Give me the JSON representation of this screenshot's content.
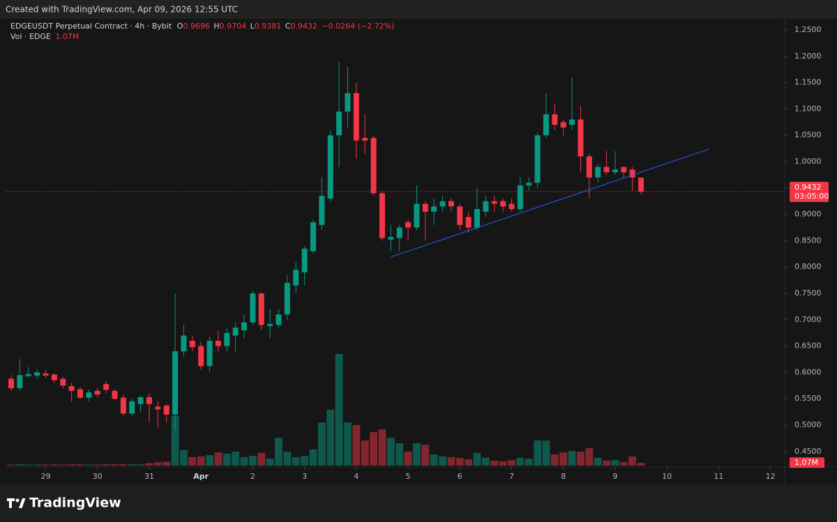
{
  "chart_data": {
    "type": "candlestick",
    "created": "Created with TradingView.com, Apr 09, 2026 12:55 UTC",
    "title": "EDGEUSDT Perpetual Contract · 4h · Bybit",
    "ohlc_prefixes": [
      "O",
      "H",
      "L",
      "C"
    ],
    "change": "−0.0264 (−2.72%)",
    "countdown": "03:05:00",
    "brand": "TradingView",
    "up_color": "#089981",
    "down_color": "#f23645",
    "open": [
      0.588,
      0.57,
      0.593,
      0.594,
      0.598,
      0.596,
      0.588,
      0.574,
      0.568,
      0.552,
      0.565,
      0.578,
      0.565,
      0.552,
      0.522,
      0.54,
      0.553,
      0.535,
      0.537,
      0.52,
      0.64,
      0.66,
      0.65,
      0.612,
      0.66,
      0.65,
      0.67,
      0.68,
      0.695,
      0.75,
      0.688,
      0.69,
      0.71,
      0.765,
      0.79,
      0.83,
      0.88,
      0.93,
      1.05,
      1.095,
      1.13,
      1.045,
      1.045,
      0.94,
      0.852,
      0.855,
      0.885,
      0.875,
      0.92,
      0.905,
      0.915,
      0.925,
      0.915,
      0.895,
      0.875,
      0.905,
      0.925,
      0.925,
      0.92,
      0.91,
      0.955,
      0.96,
      1.05,
      1.09,
      1.075,
      1.07,
      1.08,
      1.01,
      0.97,
      0.99,
      0.98,
      0.99,
      0.985,
      0.9696
    ],
    "high": [
      0.595,
      0.625,
      0.61,
      0.606,
      0.605,
      0.598,
      0.592,
      0.58,
      0.572,
      0.568,
      0.57,
      0.583,
      0.568,
      0.558,
      0.55,
      0.556,
      0.56,
      0.545,
      0.54,
      0.75,
      0.69,
      0.67,
      0.658,
      0.668,
      0.68,
      0.685,
      0.695,
      0.71,
      0.755,
      0.752,
      0.72,
      0.72,
      0.785,
      0.81,
      0.84,
      0.89,
      0.97,
      1.06,
      1.19,
      1.18,
      1.15,
      1.09,
      1.05,
      0.945,
      0.88,
      0.88,
      0.89,
      0.955,
      0.925,
      0.93,
      0.935,
      0.93,
      0.92,
      0.905,
      0.95,
      0.935,
      0.935,
      0.93,
      0.93,
      0.97,
      0.97,
      1.055,
      1.13,
      1.11,
      1.08,
      1.16,
      1.105,
      1.015,
      0.995,
      1.02,
      1.02,
      0.99,
      0.99,
      0.9704
    ],
    "low": [
      0.565,
      0.565,
      0.59,
      0.588,
      0.59,
      0.58,
      0.57,
      0.545,
      0.55,
      0.545,
      0.552,
      0.56,
      0.548,
      0.518,
      0.518,
      0.525,
      0.505,
      0.495,
      0.505,
      0.49,
      0.63,
      0.64,
      0.605,
      0.602,
      0.64,
      0.64,
      0.64,
      0.665,
      0.69,
      0.68,
      0.665,
      0.685,
      0.7,
      0.75,
      0.765,
      0.825,
      0.87,
      0.925,
      0.99,
      1.065,
      1.005,
      1.015,
      0.935,
      0.85,
      0.83,
      0.83,
      0.85,
      0.87,
      0.85,
      0.88,
      0.905,
      0.905,
      0.87,
      0.865,
      0.87,
      0.895,
      0.905,
      0.905,
      0.905,
      0.905,
      0.945,
      0.95,
      1.045,
      1.06,
      1.05,
      1.06,
      0.98,
      0.93,
      0.96,
      0.975,
      0.975,
      0.97,
      0.945,
      0.9381
    ],
    "close": [
      0.57,
      0.595,
      0.597,
      0.6,
      0.594,
      0.585,
      0.575,
      0.565,
      0.552,
      0.562,
      0.558,
      0.567,
      0.55,
      0.522,
      0.545,
      0.553,
      0.54,
      0.53,
      0.52,
      0.64,
      0.67,
      0.648,
      0.612,
      0.66,
      0.65,
      0.675,
      0.685,
      0.695,
      0.75,
      0.69,
      0.692,
      0.71,
      0.77,
      0.795,
      0.835,
      0.885,
      0.935,
      1.05,
      1.095,
      1.13,
      1.04,
      1.04,
      0.94,
      0.855,
      0.857,
      0.875,
      0.875,
      0.92,
      0.905,
      0.915,
      0.925,
      0.915,
      0.88,
      0.875,
      0.91,
      0.925,
      0.92,
      0.915,
      0.91,
      0.955,
      0.96,
      1.05,
      1.09,
      1.07,
      1.065,
      1.08,
      1.01,
      0.97,
      0.99,
      0.98,
      0.985,
      0.98,
      0.97,
      0.9432
    ],
    "volume": {
      "name": "Vol · EDGE",
      "last_label": "1.07M",
      "values": [
        400000,
        500000,
        400000,
        400000,
        400000,
        500000,
        400000,
        500000,
        500000,
        400000,
        400000,
        500000,
        500000,
        600000,
        500000,
        500000,
        1000000,
        1300000,
        1500000,
        20000000,
        6200000,
        3400000,
        3700000,
        4200000,
        5300000,
        4800000,
        5600000,
        3400000,
        3900000,
        5100000,
        2800000,
        11200000,
        5600000,
        3400000,
        3900000,
        6500000,
        17400000,
        22500000,
        45000000,
        17400000,
        16300000,
        10100000,
        13500000,
        14600000,
        11200000,
        9000000,
        5600000,
        9000000,
        8400000,
        4500000,
        3700000,
        3400000,
        3100000,
        2500000,
        5100000,
        3100000,
        2000000,
        1700000,
        2200000,
        3100000,
        2800000,
        10100000,
        10100000,
        4500000,
        5300000,
        5900000,
        5600000,
        7000000,
        3100000,
        2000000,
        2200000,
        1400000,
        3700000,
        1070000
      ],
      "y2lim": [
        0,
        180000000
      ]
    },
    "trendline": {
      "points": [
        [
          44,
          0.819
        ],
        [
          80.9,
          1.024
        ]
      ],
      "color": "#2962ff"
    },
    "xlim": [
      -0.65,
      89.65
    ],
    "xticks": [
      {
        "value": 4,
        "label": "29"
      },
      {
        "value": 10,
        "label": "30"
      },
      {
        "value": 16,
        "label": "31"
      },
      {
        "value": 22,
        "label": "Apr"
      },
      {
        "value": 28,
        "label": "2"
      },
      {
        "value": 34,
        "label": "3"
      },
      {
        "value": 40,
        "label": "4"
      },
      {
        "value": 46,
        "label": "5"
      },
      {
        "value": 52,
        "label": "6"
      },
      {
        "value": 58,
        "label": "7"
      },
      {
        "value": 64,
        "label": "8"
      },
      {
        "value": 70,
        "label": "9"
      },
      {
        "value": 76,
        "label": "10"
      },
      {
        "value": 82,
        "label": "11"
      },
      {
        "value": 88,
        "label": "12"
      }
    ],
    "ylim": [
      0.4206,
      1.2698
    ],
    "yticks": [
      {
        "value": 0.45,
        "label": "0.4500"
      },
      {
        "value": 0.5,
        "label": "0.5000"
      },
      {
        "value": 0.55,
        "label": "0.5500"
      },
      {
        "value": 0.6,
        "label": "0.6000"
      },
      {
        "value": 0.65,
        "label": "0.6500"
      },
      {
        "value": 0.7,
        "label": "0.7000"
      },
      {
        "value": 0.75,
        "label": "0.7500"
      },
      {
        "value": 0.8,
        "label": "0.8000"
      },
      {
        "value": 0.85,
        "label": "0.8500"
      },
      {
        "value": 0.9,
        "label": "0.9000"
      },
      {
        "value": 0.95,
        "label": "0.9500"
      },
      {
        "value": 1.0,
        "label": "1.0000"
      },
      {
        "value": 1.05,
        "label": "1.0500"
      },
      {
        "value": 1.1,
        "label": "1.1000"
      },
      {
        "value": 1.15,
        "label": "1.1500"
      },
      {
        "value": 1.2,
        "label": "1.2000"
      },
      {
        "value": 1.25,
        "label": "1.2500"
      }
    ]
  }
}
